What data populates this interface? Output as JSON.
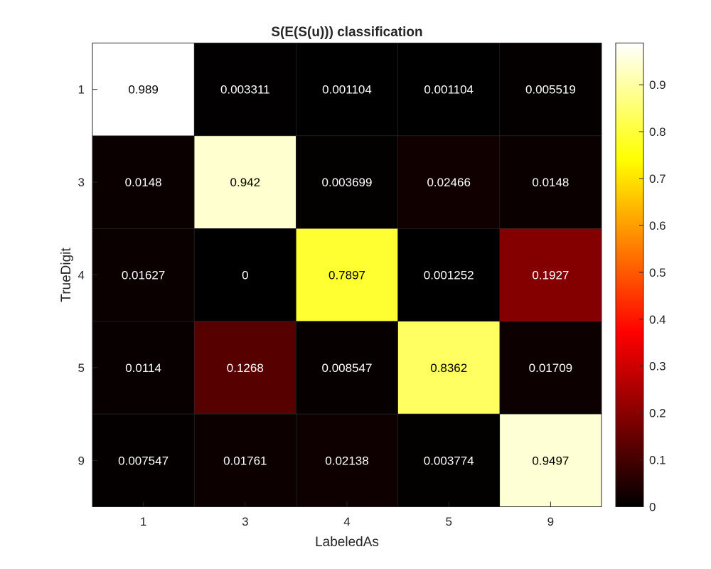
{
  "chart_data": {
    "type": "heatmap",
    "title": "S(E(S(u))) classification",
    "xlabel": "LabeledAs",
    "ylabel": "TrueDigit",
    "x_categories": [
      "1",
      "3",
      "4",
      "5",
      "9"
    ],
    "y_categories": [
      "1",
      "3",
      "4",
      "5",
      "9"
    ],
    "values": [
      [
        0.989,
        0.003311,
        0.001104,
        0.001104,
        0.005519
      ],
      [
        0.0148,
        0.942,
        0.003699,
        0.02466,
        0.0148
      ],
      [
        0.01627,
        0,
        0.7897,
        0.001252,
        0.1927
      ],
      [
        0.0114,
        0.1268,
        0.008547,
        0.8362,
        0.01709
      ],
      [
        0.007547,
        0.01761,
        0.02138,
        0.003774,
        0.9497
      ]
    ],
    "cell_labels": [
      [
        "0.989",
        "0.003311",
        "0.001104",
        "0.001104",
        "0.005519"
      ],
      [
        "0.0148",
        "0.942",
        "0.003699",
        "0.02466",
        "0.0148"
      ],
      [
        "0.01627",
        "0",
        "0.7897",
        "0.001252",
        "0.1927"
      ],
      [
        "0.0114",
        "0.1268",
        "0.008547",
        "0.8362",
        "0.01709"
      ],
      [
        "0.007547",
        "0.01761",
        "0.02138",
        "0.003774",
        "0.9497"
      ]
    ],
    "colormap": "hot",
    "clim": [
      0,
      0.989
    ],
    "colorbar": {
      "location": "right",
      "ticks": [
        0,
        0.1,
        0.2,
        0.3,
        0.4,
        0.5,
        0.6,
        0.7,
        0.8,
        0.9
      ],
      "tick_labels": [
        "0",
        "0.1",
        "0.2",
        "0.3",
        "0.4",
        "0.5",
        "0.6",
        "0.7",
        "0.8",
        "0.9"
      ]
    },
    "grid": false
  }
}
